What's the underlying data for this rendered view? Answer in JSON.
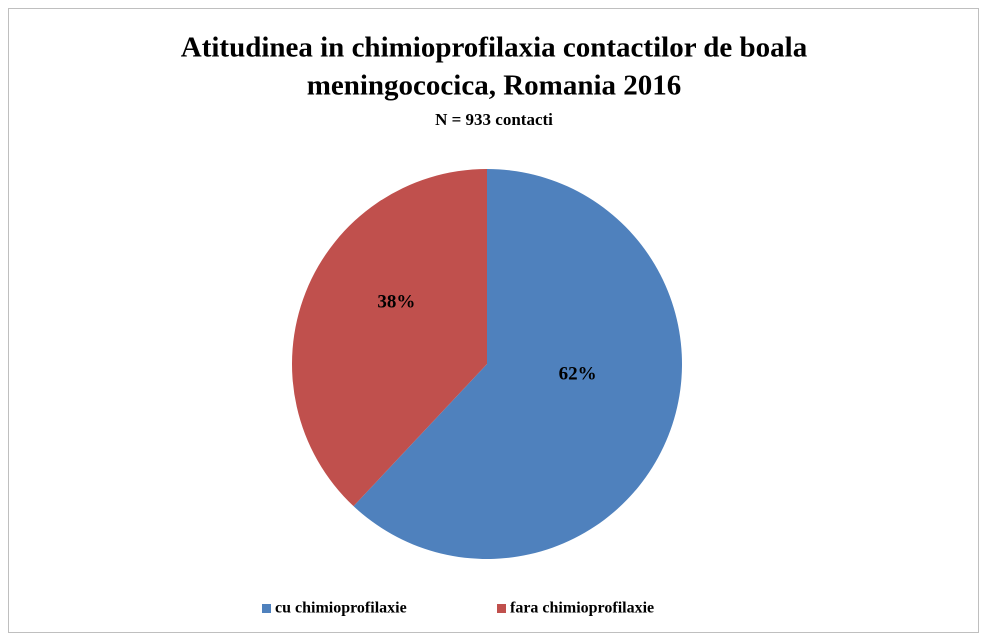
{
  "chart_data": {
    "type": "pie",
    "title": [
      "Atitudinea in chimioprofilaxia contactilor de boala",
      "meningococica, Romania 2016"
    ],
    "subtitle": "N = 933 contacti",
    "categories": [
      "cu chimioprofilaxie",
      "fara chimioprofilaxie"
    ],
    "values": [
      62,
      38
    ],
    "value_labels": [
      "62%",
      "38%"
    ],
    "colors": [
      "#4f81bd",
      "#c0504d"
    ],
    "legend": "bottom"
  }
}
